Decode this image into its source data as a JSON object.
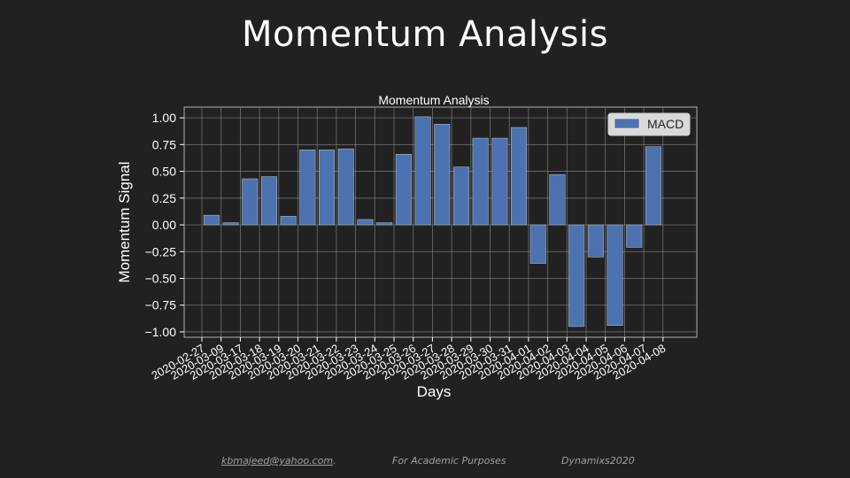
{
  "slide": {
    "title": "Momentum Analysis"
  },
  "footer": {
    "email": "kbmajeed@yahoo.com",
    "email_suffix": ".",
    "purpose": "For Academic Purposes",
    "brand": "Dynamixs2020"
  },
  "colors": {
    "background": "#212121",
    "bar": "#4c72b0",
    "grid": "#8a8a8a",
    "text": "#ffffff"
  },
  "chart_data": {
    "type": "bar",
    "title": "Momentum Analysis",
    "xlabel": "Days",
    "ylabel": "Momentum Signal",
    "ylim": [
      -1.05,
      1.1
    ],
    "yticks": [
      1.0,
      0.75,
      0.5,
      0.25,
      0.0,
      -0.25,
      -0.5,
      -0.75,
      -1.0
    ],
    "ytick_labels": [
      "1.00",
      "0.75",
      "0.50",
      "0.25",
      "0.00",
      "−0.25",
      "−0.50",
      "−0.75",
      "−1.00"
    ],
    "grid": true,
    "legend_position": "top-right",
    "categories": [
      "2020-02-27",
      "2020-03-09",
      "2020-03-17",
      "2020-03-18",
      "2020-03-19",
      "2020-03-20",
      "2020-03-21",
      "2020-03-22",
      "2020-03-23",
      "2020-03-24",
      "2020-03-25",
      "2020-03-26",
      "2020-03-27",
      "2020-03-28",
      "2020-03-29",
      "2020-03-30",
      "2020-03-31",
      "2020-04-01",
      "2020-04-02",
      "2020-04-03",
      "2020-04-04",
      "2020-04-05",
      "2020-04-06",
      "2020-04-07",
      "2020-04-08"
    ],
    "series": [
      {
        "name": "MACD",
        "values": [
          0.09,
          0.02,
          0.43,
          0.45,
          0.08,
          0.7,
          0.7,
          0.71,
          0.05,
          0.02,
          0.66,
          1.01,
          0.94,
          0.54,
          0.81,
          0.81,
          0.91,
          -0.36,
          0.47,
          -0.95,
          -0.3,
          -0.94,
          -0.21,
          0.73,
          null
        ]
      }
    ]
  }
}
